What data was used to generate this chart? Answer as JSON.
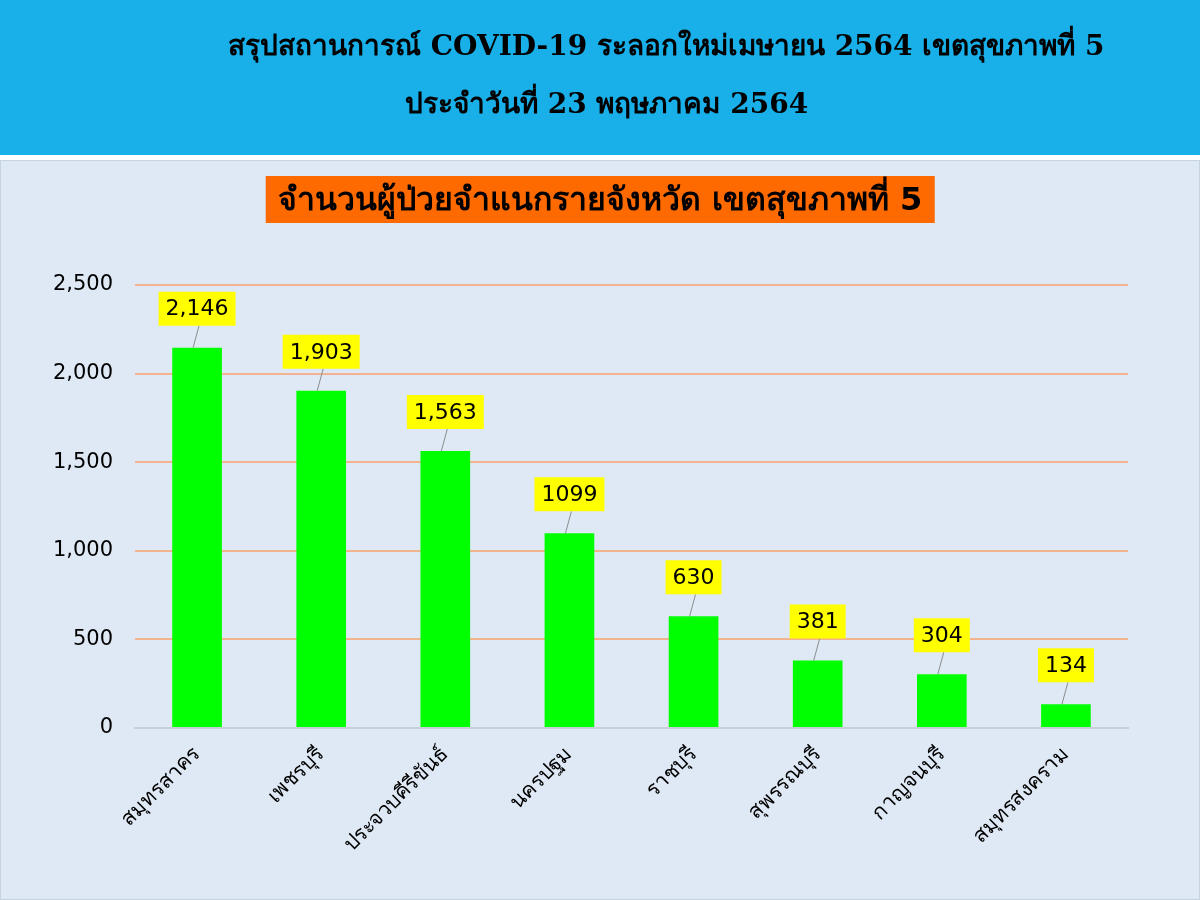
{
  "chart_data": {
    "type": "bar",
    "title": "จำนวนผู้ป่วยจำแนกรายจังหวัด เขตสุขภาพที่ 5",
    "annotations": [
      "สรุปสถานการณ์ COVID-19 ระลอกใหม่เมษายน 2564 เขตสุขภาพที่ 5",
      "ประจำวันที่ 23 พฤษภาคม 2564"
    ],
    "categories": [
      "สมุทรสาคร",
      "เพชรบุรี",
      "ประจวบคีรีขันธ์",
      "นครปฐม",
      "ราชบุรี",
      "สุพรรณบุรี",
      "กาญจนบุรี",
      "สมุทรสงคราม"
    ],
    "values": [
      2146,
      1903,
      1563,
      1099,
      630,
      381,
      304,
      134
    ],
    "value_labels": [
      "2,146",
      "1,903",
      "1,563",
      "1099",
      "630",
      "381",
      "304",
      "134"
    ],
    "color": "#00ff00",
    "ylim": [
      0,
      2500
    ],
    "yticks": [
      0,
      500,
      {
        "value": 1000,
        "label": "1,000"
      },
      {
        "value": 1500,
        "label": "1,500"
      },
      {
        "value": 2000,
        "label": "2,000"
      },
      {
        "value": 2500,
        "label": "2,500"
      }
    ],
    "grid": "y"
  }
}
